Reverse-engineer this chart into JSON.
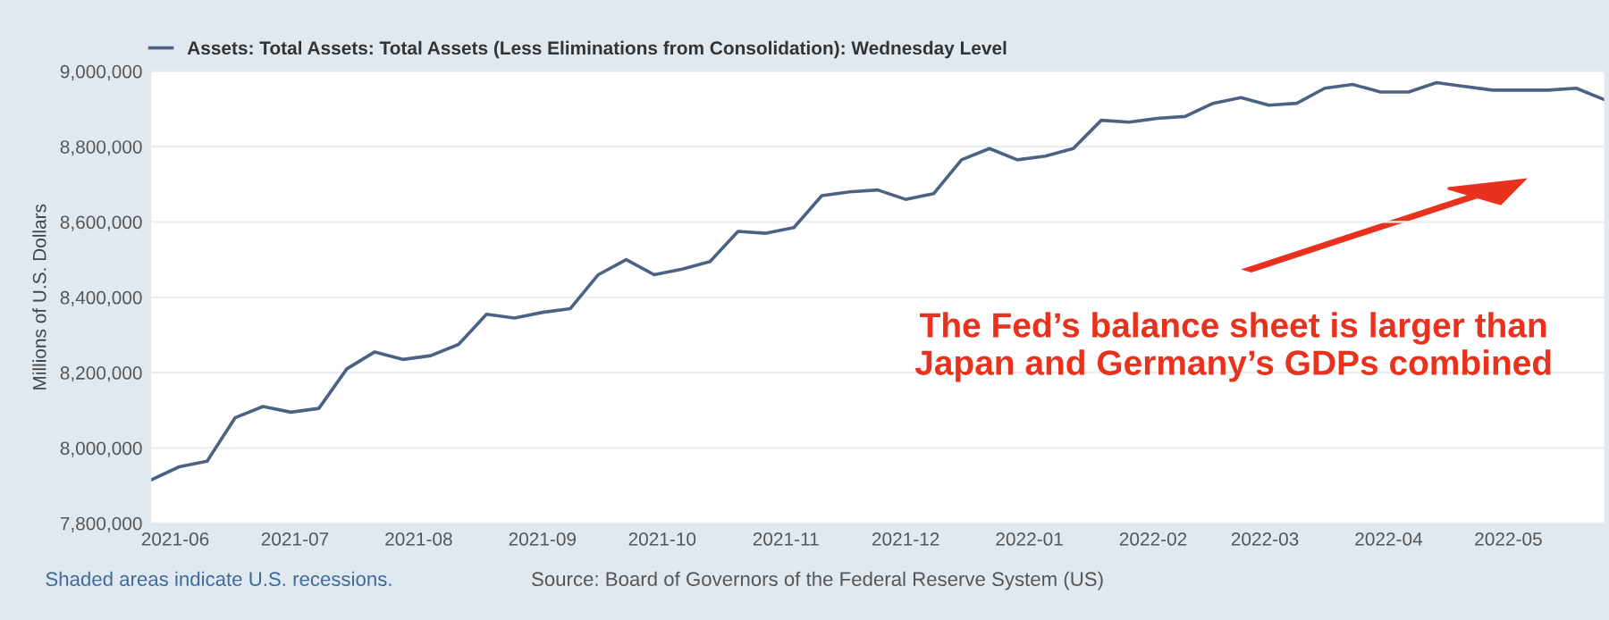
{
  "chart_data": {
    "type": "line",
    "ylabel": "Millions of U.S. Dollars",
    "x": [
      "2021-05-26",
      "2021-06-02",
      "2021-06-09",
      "2021-06-16",
      "2021-06-23",
      "2021-06-30",
      "2021-07-07",
      "2021-07-14",
      "2021-07-21",
      "2021-07-28",
      "2021-08-04",
      "2021-08-11",
      "2021-08-18",
      "2021-08-25",
      "2021-09-01",
      "2021-09-08",
      "2021-09-15",
      "2021-09-22",
      "2021-09-29",
      "2021-10-06",
      "2021-10-13",
      "2021-10-20",
      "2021-10-27",
      "2021-11-03",
      "2021-11-10",
      "2021-11-17",
      "2021-11-24",
      "2021-12-01",
      "2021-12-08",
      "2021-12-15",
      "2021-12-22",
      "2021-12-29",
      "2022-01-05",
      "2022-01-12",
      "2022-01-19",
      "2022-01-26",
      "2022-02-02",
      "2022-02-09",
      "2022-02-16",
      "2022-02-23",
      "2022-03-02",
      "2022-03-09",
      "2022-03-16",
      "2022-03-23",
      "2022-03-30",
      "2022-04-06",
      "2022-04-13",
      "2022-04-20",
      "2022-04-27",
      "2022-05-04",
      "2022-05-11",
      "2022-05-18",
      "2022-05-25"
    ],
    "series": [
      {
        "name": "Assets: Total Assets: Total Assets (Less Eliminations from Consolidation): Wednesday Level",
        "color": "#4b6285",
        "values": [
          7915000,
          7950000,
          7965000,
          8080000,
          8110000,
          8095000,
          8105000,
          8210000,
          8255000,
          8235000,
          8245000,
          8275000,
          8355000,
          8345000,
          8360000,
          8370000,
          8460000,
          8500000,
          8460000,
          8475000,
          8495000,
          8575000,
          8570000,
          8585000,
          8670000,
          8680000,
          8685000,
          8660000,
          8675000,
          8765000,
          8795000,
          8765000,
          8775000,
          8795000,
          8870000,
          8865000,
          8875000,
          8880000,
          8915000,
          8930000,
          8910000,
          8915000,
          8955000,
          8965000,
          8945000,
          8945000,
          8970000,
          8960000,
          8950000,
          8950000,
          8950000,
          8955000,
          8925000
        ]
      }
    ],
    "xlim": [
      "2021-05-26",
      "2022-05-25"
    ],
    "xticks": [
      {
        "value": "2021-06-01",
        "label": "2021-06"
      },
      {
        "value": "2021-07-01",
        "label": "2021-07"
      },
      {
        "value": "2021-08-01",
        "label": "2021-08"
      },
      {
        "value": "2021-09-01",
        "label": "2021-09"
      },
      {
        "value": "2021-10-01",
        "label": "2021-10"
      },
      {
        "value": "2021-11-01",
        "label": "2021-11"
      },
      {
        "value": "2021-12-01",
        "label": "2021-12"
      },
      {
        "value": "2022-01-01",
        "label": "2022-01"
      },
      {
        "value": "2022-02-01",
        "label": "2022-02"
      },
      {
        "value": "2022-03-01",
        "label": "2022-03"
      },
      {
        "value": "2022-04-01",
        "label": "2022-04"
      },
      {
        "value": "2022-05-01",
        "label": "2022-05"
      }
    ],
    "ylim": [
      7800000,
      9000000
    ],
    "yticks": [
      {
        "value": 7800000,
        "label": "7,800,000"
      },
      {
        "value": 8000000,
        "label": "8,000,000"
      },
      {
        "value": 8200000,
        "label": "8,200,000"
      },
      {
        "value": 8400000,
        "label": "8,400,000"
      },
      {
        "value": 8600000,
        "label": "8,600,000"
      },
      {
        "value": 8800000,
        "label": "8,800,000"
      },
      {
        "value": 9000000,
        "label": "9,000,000"
      }
    ],
    "grid": "y",
    "legend": "top",
    "annotations": [
      "The Fed’s balance sheet is larger than\nJapan and Germany’s GDPs combined",
      "Shaded areas indicate U.S. recessions.",
      "Source: Board of Governors of the Federal Reserve System (US)"
    ]
  }
}
